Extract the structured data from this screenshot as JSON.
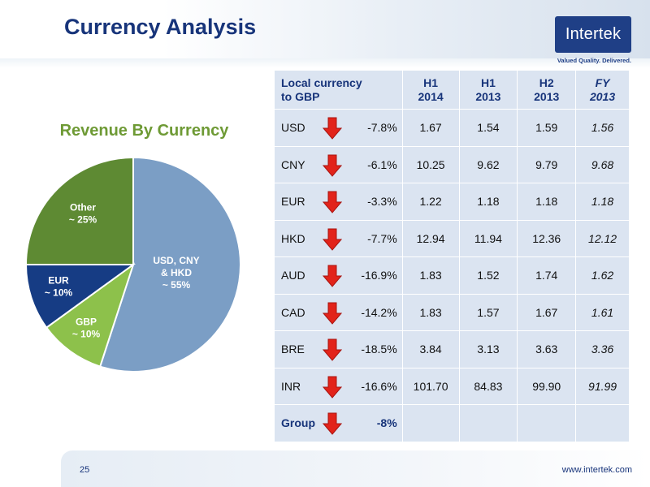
{
  "slide": {
    "title": "Currency Analysis",
    "logo": "Intertek",
    "tagline": "Valued Quality. Delivered.",
    "page_number": "25",
    "url": "www.intertek.com"
  },
  "colors": {
    "brand": "#17347a",
    "pie_title": "#6e9a35",
    "arrow": "#e2231a",
    "table_bg": "#dbe4f1"
  },
  "chart_data": {
    "type": "pie",
    "title": "Revenue By Currency",
    "slices": [
      {
        "label_lines": [
          "USD, CNY",
          "& HKD",
          "~ 55%"
        ],
        "value": 55,
        "color": "#7b9ec5"
      },
      {
        "label_lines": [
          "GBP",
          "~ 10%"
        ],
        "value": 10,
        "color": "#8dc14b"
      },
      {
        "label_lines": [
          "EUR",
          "~ 10%"
        ],
        "value": 10,
        "color": "#163c84"
      },
      {
        "label_lines": [
          "Other",
          "~ 25%"
        ],
        "value": 25,
        "color": "#5e8a33"
      }
    ]
  },
  "table": {
    "headers": {
      "local_currency": [
        "Local currency",
        "to GBP"
      ],
      "h1_2014": [
        "H1",
        "2014"
      ],
      "h1_2013": [
        "H1",
        "2013"
      ],
      "h2_2013": [
        "H2",
        "2013"
      ],
      "fy_2013": [
        "FY",
        "2013"
      ]
    },
    "rows": [
      {
        "currency": "USD",
        "change": "-7.8%",
        "h1_2014": "1.67",
        "h1_2013": "1.54",
        "h2_2013": "1.59",
        "fy_2013": "1.56"
      },
      {
        "currency": "CNY",
        "change": "-6.1%",
        "h1_2014": "10.25",
        "h1_2013": "9.62",
        "h2_2013": "9.79",
        "fy_2013": "9.68"
      },
      {
        "currency": "EUR",
        "change": "-3.3%",
        "h1_2014": "1.22",
        "h1_2013": "1.18",
        "h2_2013": "1.18",
        "fy_2013": "1.18"
      },
      {
        "currency": "HKD",
        "change": "-7.7%",
        "h1_2014": "12.94",
        "h1_2013": "11.94",
        "h2_2013": "12.36",
        "fy_2013": "12.12"
      },
      {
        "currency": "AUD",
        "change": "-16.9%",
        "h1_2014": "1.83",
        "h1_2013": "1.52",
        "h2_2013": "1.74",
        "fy_2013": "1.62"
      },
      {
        "currency": "CAD",
        "change": "-14.2%",
        "h1_2014": "1.83",
        "h1_2013": "1.57",
        "h2_2013": "1.67",
        "fy_2013": "1.61"
      },
      {
        "currency": "BRE",
        "change": "-18.5%",
        "h1_2014": "3.84",
        "h1_2013": "3.13",
        "h2_2013": "3.63",
        "fy_2013": "3.36"
      },
      {
        "currency": "INR",
        "change": "-16.6%",
        "h1_2014": "101.70",
        "h1_2013": "84.83",
        "h2_2013": "99.90",
        "fy_2013": "91.99"
      }
    ],
    "group": {
      "label": "Group",
      "change": "-8%"
    }
  }
}
